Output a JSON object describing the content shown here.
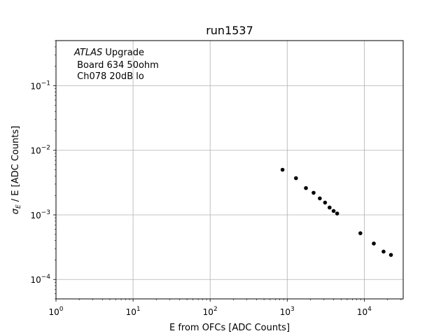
{
  "chart_data": {
    "type": "scatter",
    "title": "run1537",
    "xlabel": "E from OFCs [ADC Counts]",
    "ylabel": {
      "sigma": "σ",
      "subscript": "E",
      "rest": " / E [ADC Counts]"
    },
    "xscale": "log",
    "yscale": "log",
    "xlim": [
      1,
      32000
    ],
    "ylim": [
      5e-05,
      0.5
    ],
    "grid": true,
    "x_ticks": [
      {
        "value": 1,
        "base": "10",
        "exp": "0"
      },
      {
        "value": 10,
        "base": "10",
        "exp": "1"
      },
      {
        "value": 100,
        "base": "10",
        "exp": "2"
      },
      {
        "value": 1000,
        "base": "10",
        "exp": "3"
      },
      {
        "value": 10000,
        "base": "10",
        "exp": "4"
      }
    ],
    "y_ticks": [
      {
        "value": 0.0001,
        "base": "10",
        "exp": "−4"
      },
      {
        "value": 0.001,
        "base": "10",
        "exp": "−3"
      },
      {
        "value": 0.01,
        "base": "10",
        "exp": "−2"
      },
      {
        "value": 0.1,
        "base": "10",
        "exp": "−1"
      }
    ],
    "annotation": {
      "atlas": "ATLAS",
      "upgrade": " Upgrade",
      "line2": " Board 634 50ohm",
      "line3": " Ch078 20dB lo"
    },
    "series": [
      {
        "color": "#000000",
        "points": [
          {
            "x": 870,
            "y": 0.005
          },
          {
            "x": 1300,
            "y": 0.0037
          },
          {
            "x": 1750,
            "y": 0.0026
          },
          {
            "x": 2200,
            "y": 0.0022
          },
          {
            "x": 2650,
            "y": 0.0018
          },
          {
            "x": 3100,
            "y": 0.00155
          },
          {
            "x": 3550,
            "y": 0.0013
          },
          {
            "x": 4000,
            "y": 0.00115
          },
          {
            "x": 4450,
            "y": 0.00105
          },
          {
            "x": 8900,
            "y": 0.00052
          },
          {
            "x": 13300,
            "y": 0.00036
          },
          {
            "x": 17800,
            "y": 0.00027
          },
          {
            "x": 22200,
            "y": 0.00024
          }
        ]
      }
    ]
  }
}
